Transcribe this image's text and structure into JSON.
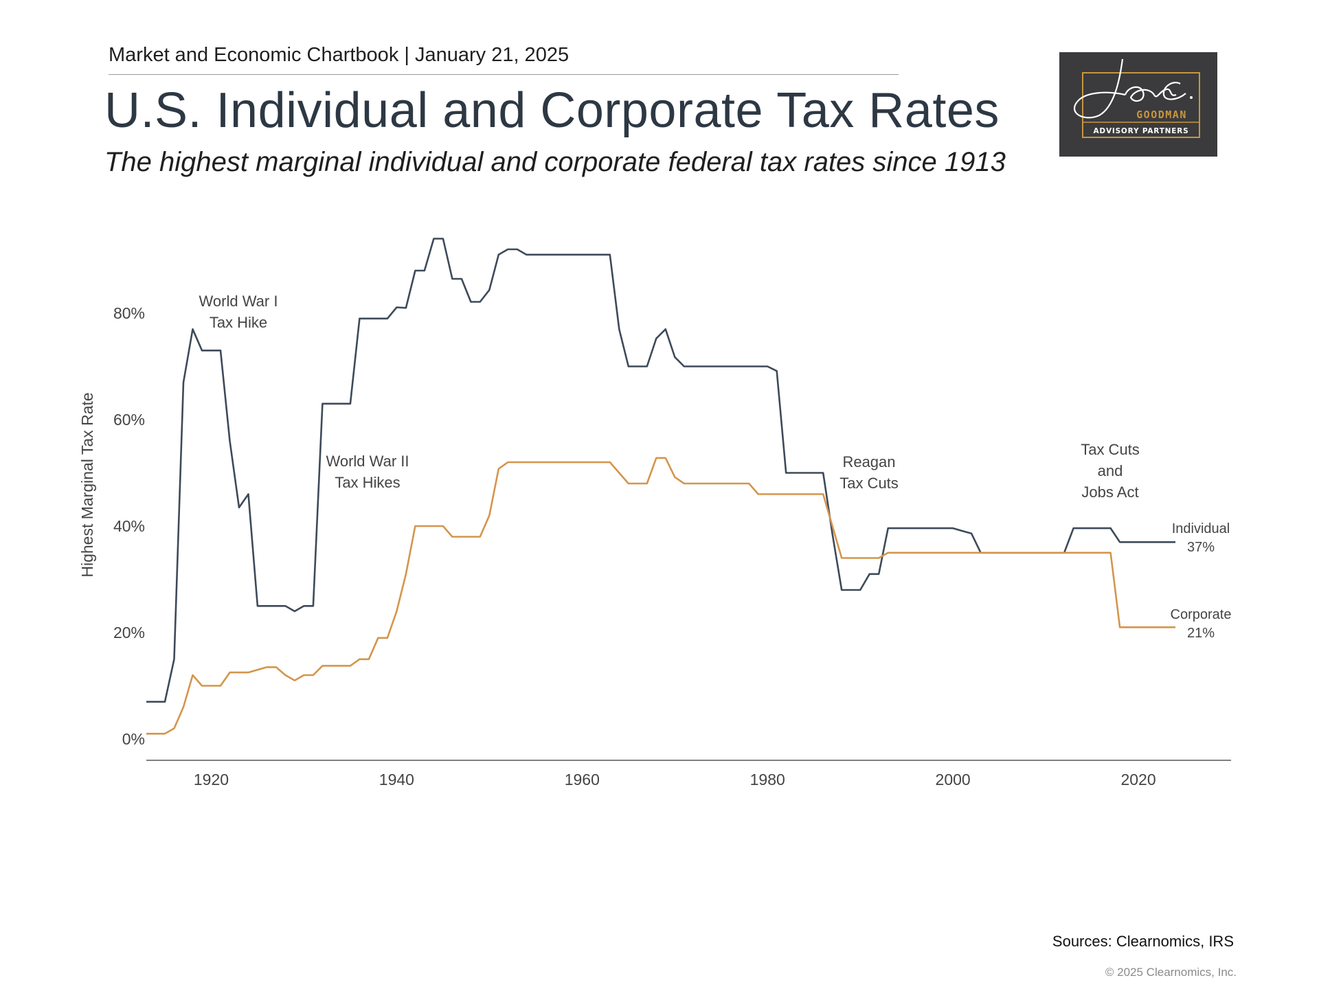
{
  "header": {
    "chartbook": "Market and Economic Chartbook | January 21, 2025",
    "title": "U.S. Individual and Corporate Tax Rates",
    "subtitle": "The highest marginal individual and corporate federal tax rates since 1913"
  },
  "logo": {
    "signature": "Jon C.",
    "name": "GOODMAN",
    "tagline": "ADVISORY PARTNERS",
    "colors": {
      "background": "#3b3b3d",
      "accent": "#c9963e",
      "signature": "#ffffff"
    }
  },
  "footer": {
    "sources": "Sources: Clearnomics, IRS",
    "copyright": "© 2025 Clearnomics, Inc."
  },
  "chart_data": {
    "type": "line",
    "title": "",
    "xlabel": "",
    "ylabel": "Highest Marginal Tax Rate",
    "xlim": [
      1913,
      2030
    ],
    "ylim": [
      0,
      100
    ],
    "x_ticks": [
      1920,
      1940,
      1960,
      1980,
      2000,
      2020
    ],
    "y_ticks": [
      0,
      20,
      40,
      60,
      80
    ],
    "y_tick_labels": [
      "0%",
      "20%",
      "40%",
      "60%",
      "80%"
    ],
    "grid": false,
    "colors": {
      "individual": "#3d4a59",
      "corporate": "#d4954c",
      "axis": "#555555",
      "text": "#444444"
    },
    "series": [
      {
        "name": "Individual",
        "end_label": "Individual",
        "end_value_label": "37%",
        "points": [
          [
            1913,
            7
          ],
          [
            1915,
            7
          ],
          [
            1916,
            15
          ],
          [
            1917,
            67
          ],
          [
            1918,
            77
          ],
          [
            1919,
            73
          ],
          [
            1921,
            73
          ],
          [
            1922,
            56
          ],
          [
            1923,
            43.5
          ],
          [
            1924,
            46
          ],
          [
            1925,
            25
          ],
          [
            1928,
            25
          ],
          [
            1929,
            24
          ],
          [
            1930,
            25
          ],
          [
            1931,
            25
          ],
          [
            1932,
            63
          ],
          [
            1935,
            63
          ],
          [
            1936,
            79
          ],
          [
            1939,
            79
          ],
          [
            1940,
            81.1
          ],
          [
            1941,
            81
          ],
          [
            1942,
            88
          ],
          [
            1943,
            88
          ],
          [
            1944,
            94
          ],
          [
            1945,
            94
          ],
          [
            1946,
            86.45
          ],
          [
            1947,
            86.45
          ],
          [
            1948,
            82.13
          ],
          [
            1949,
            82.13
          ],
          [
            1950,
            84.36
          ],
          [
            1951,
            91
          ],
          [
            1952,
            92
          ],
          [
            1953,
            92
          ],
          [
            1954,
            91
          ],
          [
            1963,
            91
          ],
          [
            1964,
            77
          ],
          [
            1965,
            70
          ],
          [
            1967,
            70
          ],
          [
            1968,
            75.25
          ],
          [
            1969,
            77
          ],
          [
            1970,
            71.75
          ],
          [
            1971,
            70
          ],
          [
            1980,
            70
          ],
          [
            1981,
            69.13
          ],
          [
            1982,
            50
          ],
          [
            1986,
            50
          ],
          [
            1987,
            38.5
          ],
          [
            1988,
            28
          ],
          [
            1990,
            28
          ],
          [
            1991,
            31
          ],
          [
            1992,
            31
          ],
          [
            1993,
            39.6
          ],
          [
            2000,
            39.6
          ],
          [
            2001,
            39.1
          ],
          [
            2002,
            38.6
          ],
          [
            2003,
            35
          ],
          [
            2012,
            35
          ],
          [
            2013,
            39.6
          ],
          [
            2017,
            39.6
          ],
          [
            2018,
            37
          ],
          [
            2024,
            37
          ]
        ]
      },
      {
        "name": "Corporate",
        "end_label": "Corporate",
        "end_value_label": "21%",
        "points": [
          [
            1913,
            1
          ],
          [
            1915,
            1
          ],
          [
            1916,
            2
          ],
          [
            1917,
            6
          ],
          [
            1918,
            12
          ],
          [
            1919,
            10
          ],
          [
            1921,
            10
          ],
          [
            1922,
            12.5
          ],
          [
            1924,
            12.5
          ],
          [
            1925,
            13
          ],
          [
            1926,
            13.5
          ],
          [
            1927,
            13.5
          ],
          [
            1928,
            12
          ],
          [
            1929,
            11
          ],
          [
            1930,
            12
          ],
          [
            1931,
            12
          ],
          [
            1932,
            13.75
          ],
          [
            1935,
            13.75
          ],
          [
            1936,
            15
          ],
          [
            1937,
            15
          ],
          [
            1938,
            19
          ],
          [
            1939,
            19
          ],
          [
            1940,
            24
          ],
          [
            1941,
            31
          ],
          [
            1942,
            40
          ],
          [
            1945,
            40
          ],
          [
            1946,
            38
          ],
          [
            1949,
            38
          ],
          [
            1950,
            42
          ],
          [
            1951,
            50.75
          ],
          [
            1952,
            52
          ],
          [
            1963,
            52
          ],
          [
            1964,
            50
          ],
          [
            1965,
            48
          ],
          [
            1967,
            48
          ],
          [
            1968,
            52.8
          ],
          [
            1969,
            52.8
          ],
          [
            1970,
            49.2
          ],
          [
            1971,
            48
          ],
          [
            1978,
            48
          ],
          [
            1979,
            46
          ],
          [
            1986,
            46
          ],
          [
            1987,
            40
          ],
          [
            1988,
            34
          ],
          [
            1992,
            34
          ],
          [
            1993,
            35
          ],
          [
            2017,
            35
          ],
          [
            2018,
            21
          ],
          [
            2024,
            21
          ]
        ]
      }
    ],
    "annotations": [
      {
        "id": "ww1",
        "lines": [
          "World War I",
          "Tax Hike"
        ]
      },
      {
        "id": "ww2",
        "lines": [
          "World War II",
          "Tax Hikes"
        ]
      },
      {
        "id": "reagan",
        "lines": [
          "Reagan",
          "Tax Cuts"
        ]
      },
      {
        "id": "tcja",
        "lines": [
          "Tax Cuts",
          "and",
          "Jobs Act"
        ]
      }
    ]
  }
}
